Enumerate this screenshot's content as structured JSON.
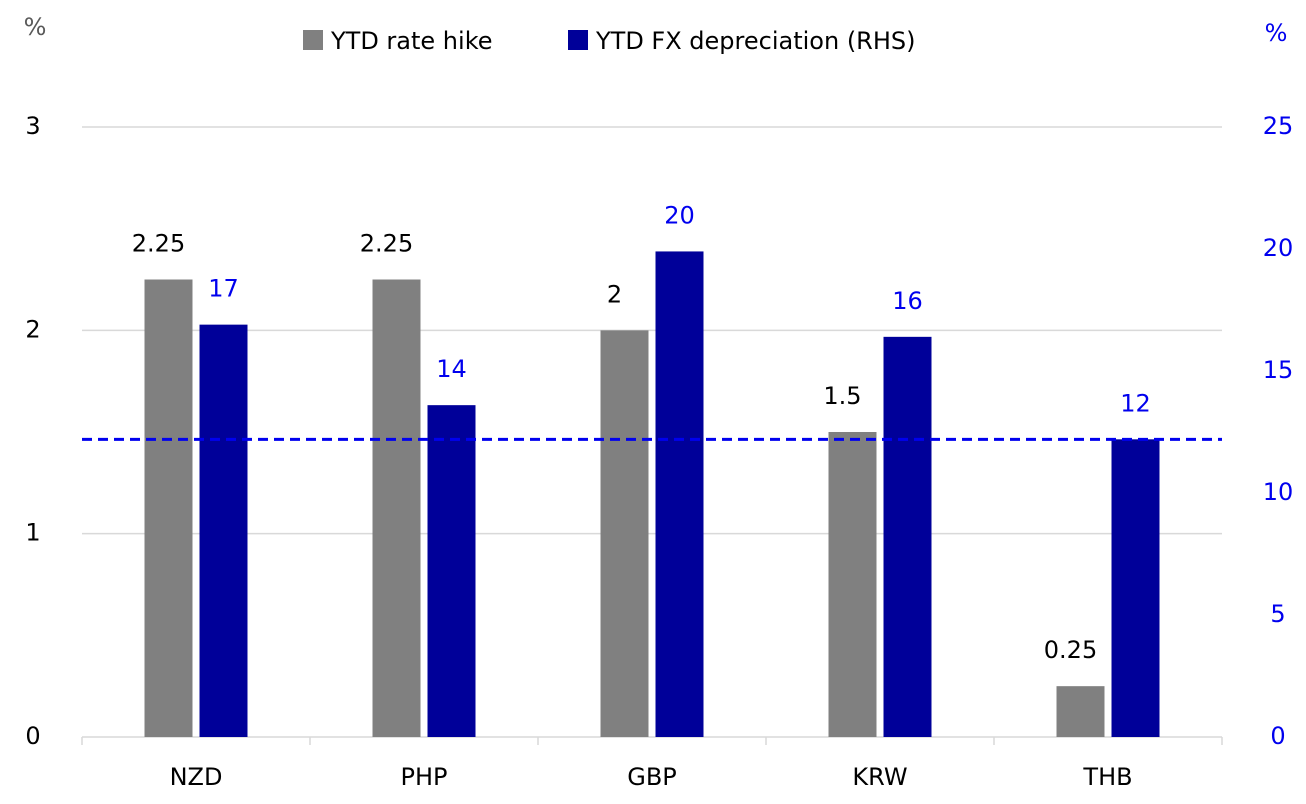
{
  "chart_data": {
    "type": "bar",
    "ylabel": "%",
    "y2label": "%",
    "categories": [
      "NZD",
      "PHP",
      "GBP",
      "KRW",
      "THB"
    ],
    "series": [
      {
        "name": "YTD rate hike",
        "color": "#808080",
        "values": [
          2.25,
          2.25,
          2,
          1.5,
          0.25
        ]
      },
      {
        "name": "YTD FX depreciation (RHS)",
        "color": "#000099",
        "axis": "y2",
        "values": [
          16.9,
          13.6,
          19.9,
          16.4,
          12.2
        ],
        "value_labels": [
          "17",
          "14",
          "20",
          "16",
          "12"
        ]
      }
    ],
    "ylim": [
      0,
      3
    ],
    "yticks": [
      0,
      1,
      2,
      3
    ],
    "y2lim": [
      0,
      25
    ],
    "y2ticks": [
      0,
      5,
      10,
      15,
      20,
      25
    ],
    "y2color": "#0000ee",
    "reference_line": {
      "value": 12.2,
      "axis": "y2",
      "color": "#0000ee",
      "style": "dashed"
    },
    "grid": true,
    "legend": "top"
  }
}
